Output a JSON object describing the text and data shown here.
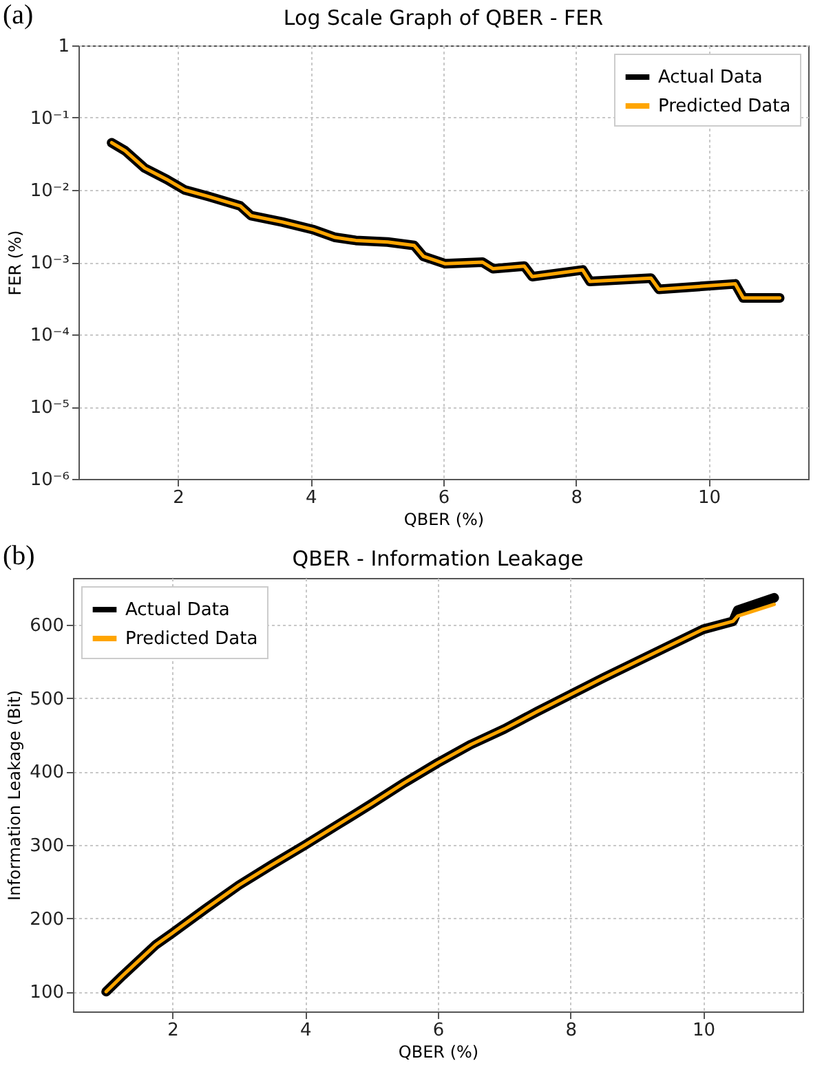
{
  "chart_data": [
    {
      "type": "line",
      "title": "Log Scale Graph of QBER - FER",
      "xlabel": "QBER (%)",
      "ylabel": "FER (%)",
      "annotations": [
        "(a)"
      ],
      "x": [
        1.0,
        1.2,
        1.5,
        1.83,
        2.1,
        2.46,
        2.94,
        3.1,
        3.57,
        4.05,
        4.37,
        4.68,
        5.16,
        5.56,
        5.7,
        6.03,
        6.59,
        6.75,
        7.22,
        7.34,
        8.1,
        8.21,
        9.13,
        9.25,
        10.4,
        10.52,
        11.07
      ],
      "series": [
        {
          "name": "Actual Data",
          "color": "#000000",
          "values": [
            0.045,
            0.035,
            0.02,
            0.014,
            0.01,
            0.0081,
            0.006,
            0.0044,
            0.0036,
            0.0028,
            0.0022,
            0.002,
            0.0019,
            0.0017,
            0.0012,
            0.00095,
            0.001,
            0.00081,
            0.00088,
            0.00063,
            0.00078,
            0.00054,
            0.0006,
            0.00042,
            0.0005,
            0.00032,
            0.00032
          ]
        },
        {
          "name": "Predicted Data",
          "color": "#ffa500",
          "values": [
            0.045,
            0.035,
            0.02,
            0.014,
            0.01,
            0.0081,
            0.006,
            0.0044,
            0.0036,
            0.0028,
            0.0022,
            0.002,
            0.0019,
            0.0017,
            0.0012,
            0.00095,
            0.001,
            0.00081,
            0.00088,
            0.00063,
            0.00078,
            0.00054,
            0.0006,
            0.00042,
            0.0005,
            0.00032,
            0.00032
          ]
        }
      ],
      "xlim": [
        0.5,
        11.5
      ],
      "xticks": [
        2,
        4,
        6,
        8,
        10
      ],
      "ylim": [
        1e-06,
        1
      ],
      "yticks": [
        {
          "value": 1e-06,
          "label": "10⁻⁶"
        },
        {
          "value": 1e-05,
          "label": "10⁻⁵"
        },
        {
          "value": 0.0001,
          "label": "10⁻⁴"
        },
        {
          "value": 0.001,
          "label": "10⁻³"
        },
        {
          "value": 0.01,
          "label": "10⁻²"
        },
        {
          "value": 0.1,
          "label": "10⁻¹"
        },
        1
      ],
      "log": "y",
      "grid": true,
      "legend": "top right"
    },
    {
      "type": "line",
      "title": "QBER - Information Leakage",
      "xlabel": "QBER (%)",
      "ylabel": "Information Leakage (Bit)",
      "annotations": [
        "(b)"
      ],
      "x": [
        1.0,
        1.25,
        1.5,
        1.75,
        2,
        2.5,
        3,
        3.5,
        4,
        4.5,
        5,
        5.5,
        6,
        6.5,
        7,
        7.5,
        8,
        8.5,
        9,
        9.5,
        10,
        10.45,
        10.52,
        11.07
      ],
      "series": [
        {
          "name": "Actual Data",
          "color": "#000000",
          "values": [
            100,
            122,
            143,
            164,
            180,
            213,
            245,
            273,
            300,
            328,
            356,
            385,
            412,
            437,
            458,
            482,
            505,
            528,
            550,
            572,
            594,
            605,
            620,
            637
          ]
        },
        {
          "name": "Predicted Data",
          "color": "#ffa500",
          "values": [
            100,
            122,
            143,
            164,
            180,
            213,
            245,
            273,
            300,
            328,
            356,
            385,
            412,
            437,
            458,
            482,
            505,
            528,
            550,
            572,
            594,
            605,
            612,
            628
          ]
        }
      ],
      "xlim": [
        0.5,
        11.5
      ],
      "xticks": [
        2,
        4,
        6,
        8,
        10
      ],
      "ylim": [
        73,
        664
      ],
      "yticks": [
        100,
        200,
        300,
        400,
        500,
        600
      ],
      "grid": true,
      "legend": "top left"
    }
  ]
}
